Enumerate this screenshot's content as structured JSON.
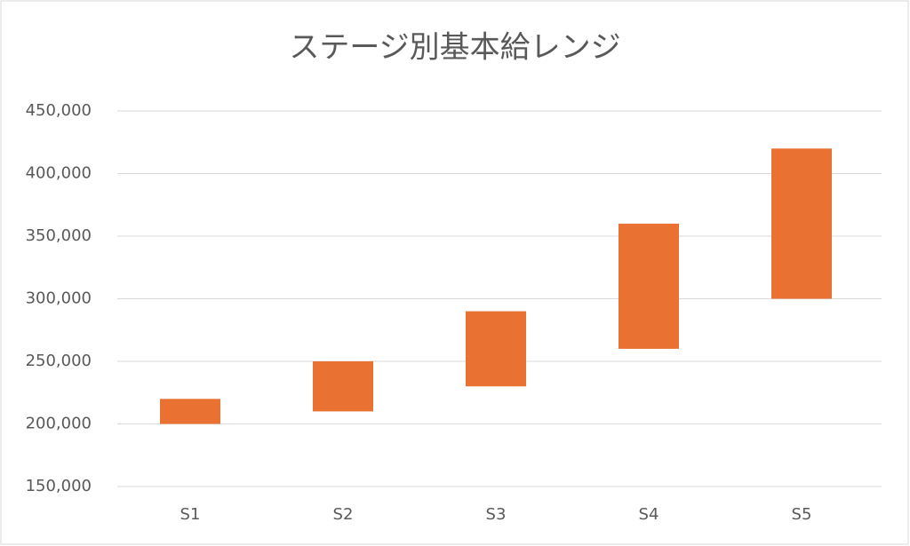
{
  "chart_data": {
    "type": "range-bar",
    "title": "ステージ別基本給レンジ",
    "categories": [
      "S1",
      "S2",
      "S3",
      "S4",
      "S5"
    ],
    "low": [
      200000,
      210000,
      230000,
      260000,
      300000
    ],
    "high": [
      220000,
      250000,
      290000,
      360000,
      420000
    ],
    "color": "#e97132",
    "ylim": [
      150000,
      450000
    ],
    "yticks": [
      {
        "value": 150000,
        "label": "150,000"
      },
      {
        "value": 200000,
        "label": "200,000"
      },
      {
        "value": 250000,
        "label": "250,000"
      },
      {
        "value": 300000,
        "label": "300,000"
      },
      {
        "value": 350000,
        "label": "350,000"
      },
      {
        "value": 400000,
        "label": "400,000"
      },
      {
        "value": 450000,
        "label": "450,000"
      }
    ],
    "grid": true
  }
}
